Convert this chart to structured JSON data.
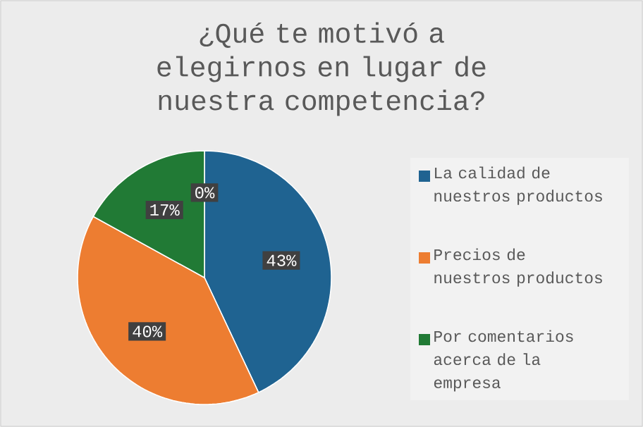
{
  "chart_data": {
    "type": "pie",
    "title": "¿Qué te motivó a elegirnos en lugar de nuestra competencia?",
    "categories": [
      "La calidad de nuestros productos",
      "Precios de nuestros productos",
      "Por comentarios acerca de la empresa",
      null
    ],
    "values": [
      43,
      40,
      17,
      0
    ],
    "colors": [
      "#1f6391",
      "#ed7d31",
      "#217a35",
      "#a5a5a5"
    ],
    "value_labels": [
      "43%",
      "40%",
      "17%",
      "0%"
    ],
    "legend": "right"
  }
}
